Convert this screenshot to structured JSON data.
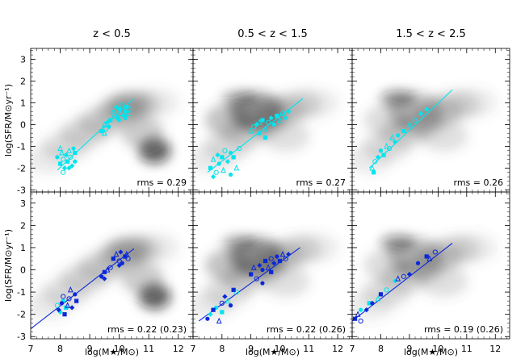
{
  "chart_data": {
    "type": "scatter",
    "layout": "2x3 grid",
    "colors": {
      "cyan": "#00e5ee",
      "blue": "#0a28d8",
      "density": "#555555"
    },
    "columns": [
      "z < 0.5",
      "0.5 < z < 1.5",
      "1.5 < z < 2.5"
    ],
    "ylabel": "log(SFR/M⊙yr⁻¹)",
    "xlabel": "log(M★/M⊙)",
    "xlim": [
      7,
      12.5
    ],
    "ylim": [
      -3.1,
      3.5
    ],
    "xticks": [
      7,
      8,
      9,
      10,
      11,
      12
    ],
    "yticks": [
      -3,
      -2,
      -1,
      0,
      1,
      2,
      3
    ],
    "panels": [
      {
        "row": 0,
        "col": 0,
        "rms": "rms = 0.29",
        "fit": {
          "color": "cyan",
          "x": [
            7.9,
            10.5
          ],
          "y": [
            -2.1,
            1.2
          ]
        },
        "points": [
          {
            "c": "cyan",
            "pts": [
              [
                7.9,
                -1.5
              ],
              [
                8.0,
                -1.8
              ],
              [
                8.05,
                -1.3
              ],
              [
                8.1,
                -1.6
              ],
              [
                8.15,
                -2.0
              ],
              [
                8.2,
                -1.4
              ],
              [
                8.25,
                -1.7
              ],
              [
                8.3,
                -1.2
              ],
              [
                8.35,
                -1.5
              ],
              [
                8.4,
                -1.9
              ],
              [
                8.45,
                -1.1
              ],
              [
                8.5,
                -1.3
              ],
              [
                8.0,
                -1.1
              ],
              [
                8.1,
                -2.2
              ],
              [
                8.3,
                -2.0
              ],
              [
                8.5,
                -1.7
              ]
            ]
          },
          {
            "c": "cyan",
            "pts": [
              [
                9.4,
                -0.3
              ],
              [
                9.5,
                0.0
              ],
              [
                9.55,
                -0.2
              ],
              [
                9.6,
                0.1
              ],
              [
                9.65,
                -0.1
              ],
              [
                9.7,
                0.2
              ],
              [
                9.5,
                -0.4
              ]
            ]
          },
          {
            "c": "cyan",
            "pts": [
              [
                9.8,
                0.6
              ],
              [
                9.85,
                0.4
              ],
              [
                9.9,
                0.8
              ],
              [
                9.95,
                0.3
              ],
              [
                10.0,
                0.7
              ],
              [
                10.05,
                0.5
              ],
              [
                10.1,
                0.9
              ],
              [
                10.15,
                0.4
              ],
              [
                10.2,
                0.6
              ],
              [
                10.25,
                0.8
              ],
              [
                10.3,
                0.5
              ],
              [
                10.35,
                0.7
              ],
              [
                10.0,
                0.2
              ],
              [
                10.2,
                0.3
              ]
            ]
          }
        ]
      },
      {
        "row": 0,
        "col": 1,
        "rms": "rms = 0.27",
        "fit": {
          "color": "cyan",
          "x": [
            7.5,
            10.8
          ],
          "y": [
            -2.2,
            1.2
          ]
        },
        "points": [
          {
            "c": "cyan",
            "pts": [
              [
                7.6,
                -2.0
              ],
              [
                7.7,
                -1.6
              ],
              [
                7.8,
                -2.2
              ],
              [
                7.85,
                -1.4
              ],
              [
                7.9,
                -1.8
              ],
              [
                8.0,
                -1.5
              ],
              [
                8.05,
                -2.1
              ],
              [
                8.1,
                -1.2
              ],
              [
                8.2,
                -1.7
              ],
              [
                8.3,
                -1.3
              ],
              [
                8.4,
                -1.5
              ],
              [
                8.5,
                -2.0
              ],
              [
                8.6,
                -1.1
              ],
              [
                7.7,
                -2.4
              ],
              [
                8.3,
                -2.3
              ]
            ]
          },
          {
            "c": "cyan",
            "pts": [
              [
                9.0,
                -0.3
              ],
              [
                9.1,
                -0.1
              ],
              [
                9.2,
                0.0
              ],
              [
                9.3,
                -0.4
              ],
              [
                9.4,
                0.2
              ],
              [
                9.5,
                -0.2
              ],
              [
                9.6,
                0.1
              ],
              [
                9.7,
                0.3
              ],
              [
                9.8,
                0.0
              ],
              [
                9.9,
                0.4
              ],
              [
                10.0,
                0.2
              ],
              [
                10.1,
                0.5
              ],
              [
                10.2,
                0.3
              ],
              [
                10.3,
                0.6
              ],
              [
                9.5,
                -0.6
              ],
              [
                9.3,
                0.1
              ]
            ]
          }
        ]
      },
      {
        "row": 0,
        "col": 2,
        "rms": "rms = 0.26",
        "fit": {
          "color": "cyan",
          "x": [
            7.6,
            10.5
          ],
          "y": [
            -2.0,
            1.6
          ]
        },
        "points": [
          {
            "c": "cyan",
            "pts": [
              [
                7.7,
                -2.0
              ],
              [
                7.8,
                -1.7
              ],
              [
                7.9,
                -1.5
              ],
              [
                8.0,
                -1.2
              ],
              [
                8.1,
                -1.4
              ],
              [
                8.2,
                -1.0
              ],
              [
                8.3,
                -1.1
              ],
              [
                8.5,
                -0.8
              ],
              [
                8.6,
                -0.5
              ],
              [
                8.8,
                -0.3
              ],
              [
                9.0,
                0.0
              ],
              [
                9.2,
                0.2
              ],
              [
                9.4,
                0.5
              ],
              [
                9.6,
                0.7
              ],
              [
                7.75,
                -2.2
              ],
              [
                8.4,
                -0.6
              ]
            ]
          }
        ]
      },
      {
        "row": 1,
        "col": 0,
        "rms": "rms = 0.22 (0.23)",
        "fit": {
          "color": "blue",
          "x": [
            7.0,
            10.5
          ],
          "y": [
            -2.65,
            0.95
          ]
        },
        "points": [
          {
            "c": "cyan",
            "pts": [
              [
                7.9,
                -1.6
              ],
              [
                8.0,
                -1.9
              ],
              [
                8.1,
                -1.4
              ],
              [
                8.2,
                -1.7
              ]
            ]
          },
          {
            "c": "blue",
            "pts": [
              [
                7.95,
                -1.8
              ],
              [
                8.05,
                -1.5
              ],
              [
                8.15,
                -2.0
              ],
              [
                8.25,
                -1.6
              ],
              [
                8.3,
                -1.3
              ],
              [
                8.4,
                -1.7
              ],
              [
                8.5,
                -1.1
              ],
              [
                8.55,
                -1.4
              ],
              [
                8.35,
                -0.9
              ],
              [
                8.1,
                -1.2
              ]
            ]
          },
          {
            "c": "blue",
            "pts": [
              [
                9.4,
                -0.3
              ],
              [
                9.5,
                -0.1
              ],
              [
                9.6,
                0.0
              ],
              [
                9.7,
                0.1
              ],
              [
                9.5,
                -0.4
              ]
            ]
          },
          {
            "c": "blue",
            "pts": [
              [
                9.8,
                0.5
              ],
              [
                9.9,
                0.7
              ],
              [
                10.0,
                0.4
              ],
              [
                10.05,
                0.8
              ],
              [
                10.1,
                0.3
              ],
              [
                10.2,
                0.6
              ],
              [
                10.25,
                0.7
              ],
              [
                10.3,
                0.5
              ],
              [
                10.0,
                0.2
              ]
            ]
          }
        ]
      },
      {
        "row": 1,
        "col": 1,
        "rms": "rms = 0.22 (0.26)",
        "fit": {
          "color": "blue",
          "x": [
            7.2,
            10.7
          ],
          "y": [
            -2.3,
            1.0
          ]
        },
        "points": [
          {
            "c": "cyan",
            "pts": [
              [
                7.6,
                -2.0
              ],
              [
                7.8,
                -1.7
              ],
              [
                8.0,
                -1.9
              ],
              [
                8.2,
                -1.4
              ],
              [
                8.5,
                -1.0
              ]
            ]
          },
          {
            "c": "blue",
            "pts": [
              [
                7.5,
                -2.2
              ],
              [
                7.7,
                -1.8
              ],
              [
                7.9,
                -2.3
              ],
              [
                8.0,
                -1.5
              ],
              [
                8.1,
                -1.2
              ],
              [
                8.3,
                -1.6
              ],
              [
                8.4,
                -0.9
              ]
            ]
          },
          {
            "c": "blue",
            "pts": [
              [
                9.0,
                -0.2
              ],
              [
                9.1,
                0.1
              ],
              [
                9.2,
                -0.4
              ],
              [
                9.3,
                0.2
              ],
              [
                9.4,
                0.0
              ],
              [
                9.5,
                0.4
              ],
              [
                9.6,
                0.1
              ],
              [
                9.7,
                0.5
              ],
              [
                9.8,
                0.3
              ],
              [
                9.9,
                0.6
              ],
              [
                10.0,
                0.4
              ],
              [
                10.1,
                0.7
              ],
              [
                10.2,
                0.5
              ],
              [
                10.3,
                0.7
              ],
              [
                9.4,
                -0.6
              ],
              [
                9.7,
                -0.1
              ]
            ]
          }
        ]
      },
      {
        "row": 1,
        "col": 2,
        "rms": "rms = 0.19 (0.26)",
        "fit": {
          "color": "blue",
          "x": [
            7.0,
            10.5
          ],
          "y": [
            -2.3,
            1.2
          ]
        },
        "points": [
          {
            "c": "cyan",
            "pts": [
              [
                7.3,
                -1.8
              ],
              [
                7.6,
                -1.5
              ],
              [
                7.9,
                -1.3
              ],
              [
                8.2,
                -0.9
              ],
              [
                8.5,
                -0.5
              ]
            ]
          },
          {
            "c": "blue",
            "pts": [
              [
                7.1,
                -2.2
              ],
              [
                7.2,
                -2.0
              ],
              [
                7.3,
                -2.3
              ],
              [
                7.5,
                -1.8
              ],
              [
                7.7,
                -1.5
              ],
              [
                8.0,
                -1.1
              ],
              [
                8.6,
                -0.4
              ],
              [
                8.8,
                -0.3
              ],
              [
                9.0,
                -0.2
              ],
              [
                9.3,
                0.3
              ],
              [
                9.6,
                0.6
              ],
              [
                9.7,
                0.5
              ],
              [
                9.9,
                0.8
              ]
            ]
          }
        ]
      }
    ]
  }
}
